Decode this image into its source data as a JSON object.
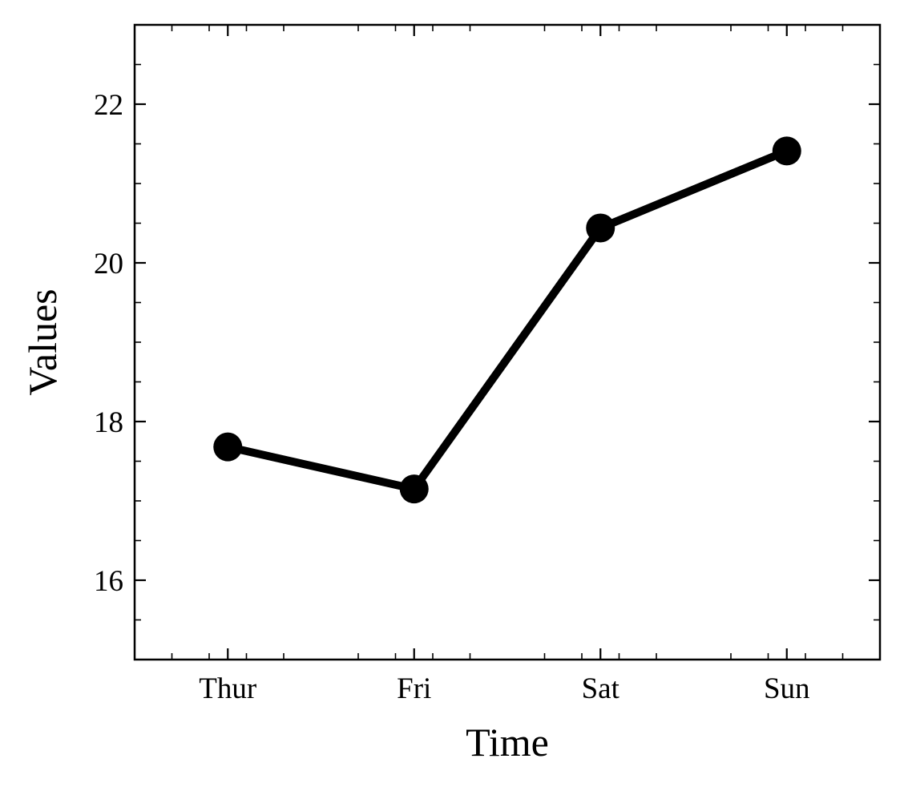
{
  "chart_data": {
    "type": "line",
    "title": "",
    "xlabel": "Time",
    "ylabel": "Values",
    "categories": [
      "Thur",
      "Fri",
      "Sat",
      "Sun"
    ],
    "series": [
      {
        "values": [
          17.68,
          17.15,
          20.44,
          21.41
        ]
      }
    ],
    "ylim": [
      15,
      23
    ],
    "yticks": [
      16,
      18,
      20,
      22
    ],
    "y_minor_step": 0.5,
    "grid": false,
    "legend": "none",
    "ticks_direction": "in",
    "mirror_ticks": true,
    "line_color": "#000000",
    "marker": "circle"
  }
}
